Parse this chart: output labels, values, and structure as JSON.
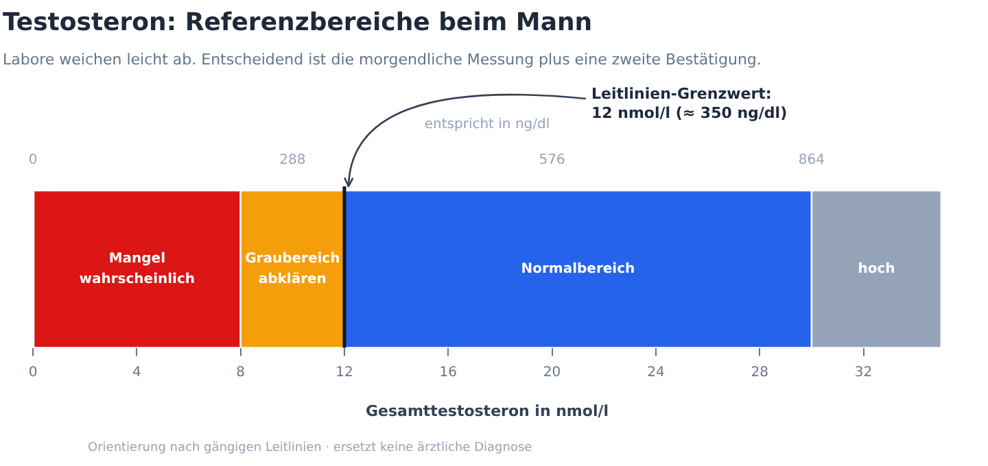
{
  "chart_data": {
    "type": "bar",
    "orientation": "horizontal",
    "stacked": true,
    "title": "Testosteron: Referenzbereiche beim Mann",
    "subtitle": "Labore weichen leicht ab. Entscheidend ist die morgendliche Messung plus eine zweite Bestätigung.",
    "xlabel": "Gesamttestosteron in nmol/l",
    "x2label": "entspricht in ng/dl",
    "categories": [
      null
    ],
    "series": [
      {
        "name": "Mangel wahrscheinlich",
        "color": "#dc1515",
        "values": [
          8
        ]
      },
      {
        "name": "Graubereich abklären",
        "color": "#f59e0b",
        "values": [
          4
        ]
      },
      {
        "name": "Normalbereich",
        "color": "#2563eb",
        "values": [
          18
        ]
      },
      {
        "name": "hoch",
        "color": "#94a3b8",
        "values": [
          5
        ]
      }
    ],
    "xlim": [
      0,
      35
    ],
    "xticks": [
      0,
      4,
      8,
      12,
      16,
      20,
      24,
      28,
      32
    ],
    "x2lim": [
      0,
      1008
    ],
    "x2ticks": [
      0,
      288,
      576,
      864
    ],
    "ref_lines": [
      {
        "axis": "x",
        "value": 12,
        "label": "Leitlinien-Grenzwert:\n12 nmol/l (≈ 350 ng/dl)",
        "color": "#111827"
      }
    ],
    "annotations": [
      "Orientierung nach gängigen Leitlinien · ersetzt keine ärztliche Diagnose"
    ],
    "tick_labels": "x",
    "legend": false,
    "grid": false
  }
}
